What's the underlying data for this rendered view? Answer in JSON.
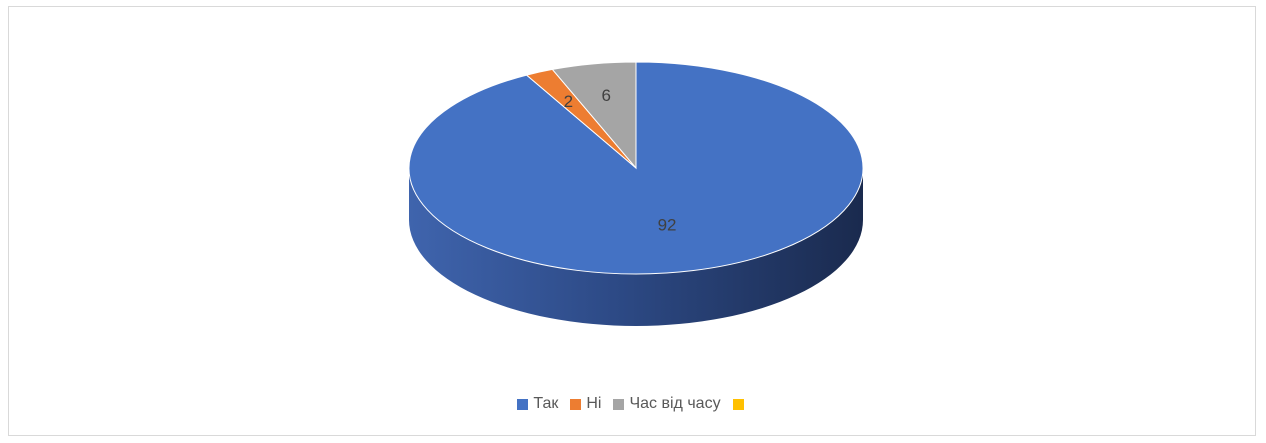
{
  "chart_data": {
    "type": "pie",
    "style": "3d",
    "title": "",
    "categories": [
      "Так",
      "Ні",
      "Час від часу",
      ""
    ],
    "values": [
      92,
      2,
      6,
      0
    ],
    "data_labels": [
      "92",
      "2",
      "6",
      ""
    ],
    "colors": [
      "#4472c4",
      "#ed7d31",
      "#a5a5a5",
      "#ffc000"
    ],
    "legend_position": "bottom"
  }
}
